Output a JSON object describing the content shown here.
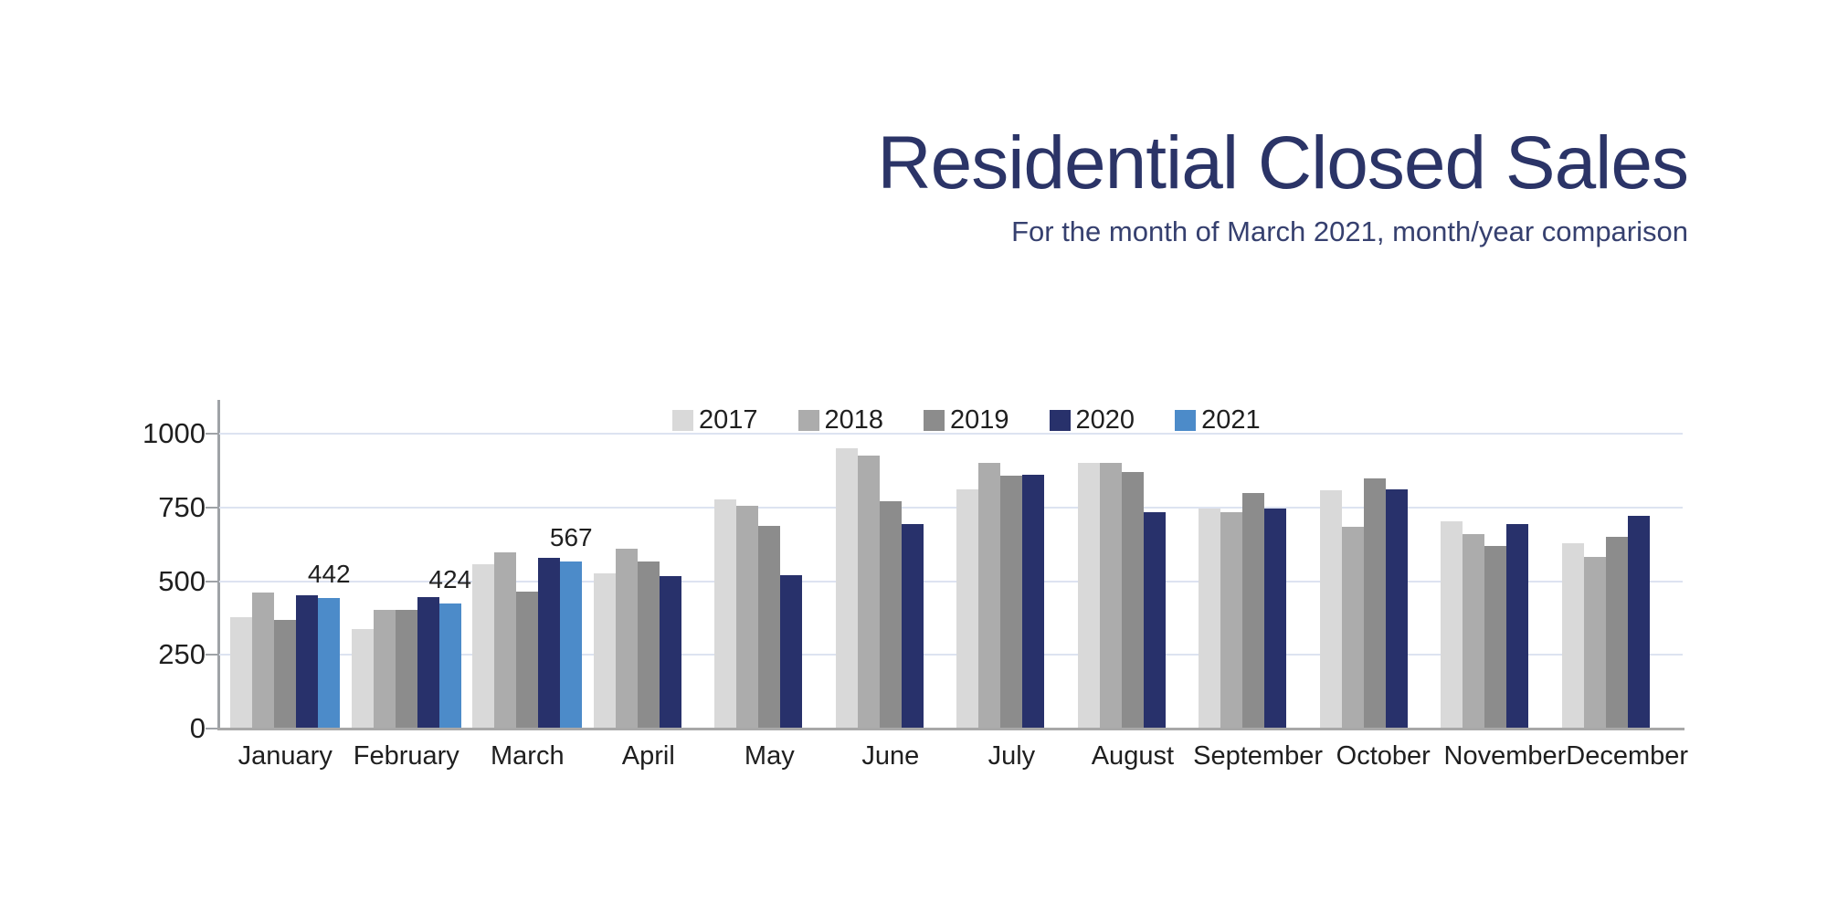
{
  "theme": {
    "background": "#FFFFFF",
    "title_color": "#2B3467",
    "subtitle_color": "#36406F",
    "grid_color": "#DDE3F1",
    "axis_color": "#9FA3A7",
    "text_color": "#1F1F1F"
  },
  "chart_data": {
    "type": "bar",
    "title": "Residential Closed Sales",
    "subtitle": "For the month of March 2021, month/year comparison",
    "categories": [
      "January",
      "February",
      "March",
      "April",
      "May",
      "June",
      "July",
      "August",
      "September",
      "October",
      "November",
      "December"
    ],
    "series": [
      {
        "name": "2017",
        "color": "#D9D9D9",
        "values": [
          379,
          338,
          557,
          526,
          778,
          950,
          810,
          900,
          745,
          808,
          703,
          628
        ]
      },
      {
        "name": "2018",
        "color": "#ACACAC",
        "values": [
          462,
          404,
          598,
          609,
          757,
          925,
          900,
          900,
          735,
          685,
          660,
          583
        ]
      },
      {
        "name": "2019",
        "color": "#8C8C8C",
        "values": [
          369,
          402,
          463,
          566,
          686,
          770,
          858,
          870,
          798,
          848,
          620,
          650
        ]
      },
      {
        "name": "2020",
        "color": "#28316B",
        "values": [
          452,
          445,
          579,
          516,
          520,
          695,
          860,
          735,
          745,
          810,
          693,
          722
        ]
      },
      {
        "name": "2021",
        "color": "#4C8BC9",
        "values": [
          442,
          424,
          567,
          null,
          null,
          null,
          null,
          null,
          null,
          null,
          null,
          null
        ]
      }
    ],
    "data_labels": {
      "series": "2021",
      "values": [
        442,
        424,
        567
      ]
    },
    "yticks": [
      0,
      250,
      500,
      750,
      1000
    ],
    "ylim": [
      0,
      1100
    ],
    "xlabel": "",
    "ylabel": "",
    "grid": true,
    "legend_position": "top-center"
  }
}
